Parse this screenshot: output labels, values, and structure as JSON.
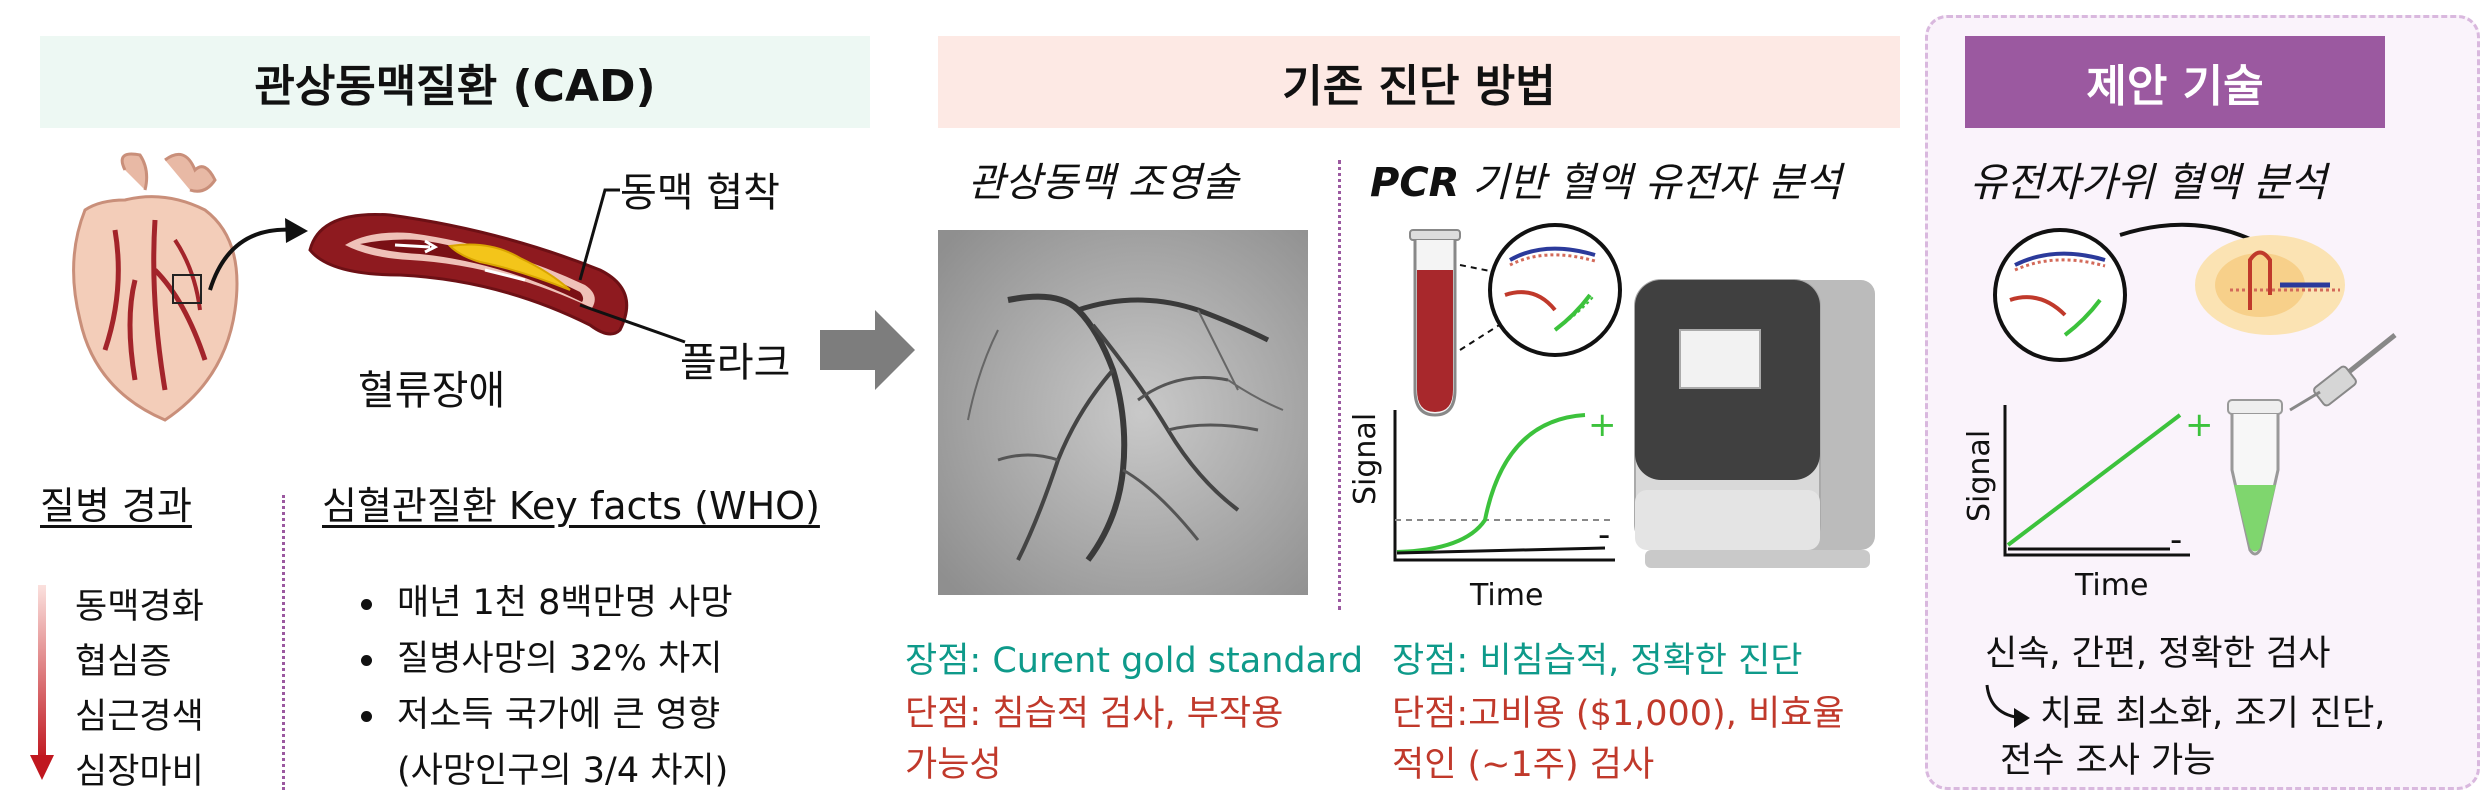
{
  "cad": {
    "header": "관상동맥질환 (CAD)",
    "stenosis_label": "동맥 협착",
    "flow_label": "혈류장애",
    "plaque_label": "플라크",
    "progress_title": "질병 경과",
    "progress_items": [
      "동맥경화",
      "협심증",
      "심근경색",
      "심장마비"
    ],
    "facts_title": "심혈관질환 Key facts (WHO)",
    "facts": [
      "매년 1천 8백만명 사망",
      "질병사망의 32% 차지",
      "저소득 국가에 큰 영향",
      "(사망인구의 3/4 차지)"
    ]
  },
  "existing": {
    "header": "기존 진단 방법",
    "angio_title": "관상동맥 조영술",
    "angio_pros": "장점: Curent gold standard",
    "angio_cons_1": "단점: 침습적 검사, 부작용",
    "angio_cons_2": "가능성",
    "pcr_title_bold": "PCR",
    "pcr_title_rest": " 기반 혈액 유전자 분석",
    "pcr_axis_y": "Signal",
    "pcr_axis_x": "Time",
    "pcr_plus": "+",
    "pcr_minus": "-",
    "pcr_pros": "장점: 비침습적, 정확한 진단",
    "pcr_cons_1": "단점:고비용 ($1,000), 비효율",
    "pcr_cons_2": "적인 (~1주) 검사"
  },
  "proposed": {
    "header": "제안 기술",
    "title": "유전자가위 혈액 분석",
    "axis_y": "Signal",
    "axis_x": "Time",
    "plus": "+",
    "minus": "-",
    "summary": "신속, 간편, 정확한 검사",
    "benefit_1": "치료 최소화, 조기 진단,",
    "benefit_2": "전수 조사 가능"
  },
  "colors": {
    "cad_header_bg": "#edf8f3",
    "existing_header_bg": "#fde9e4",
    "proposed_header_bg": "#9b59a0",
    "proposed_panel_bg": "#faf3fb",
    "teal": "#0e9a8a",
    "red": "#c0392b",
    "green_signal": "#3cc23c"
  }
}
